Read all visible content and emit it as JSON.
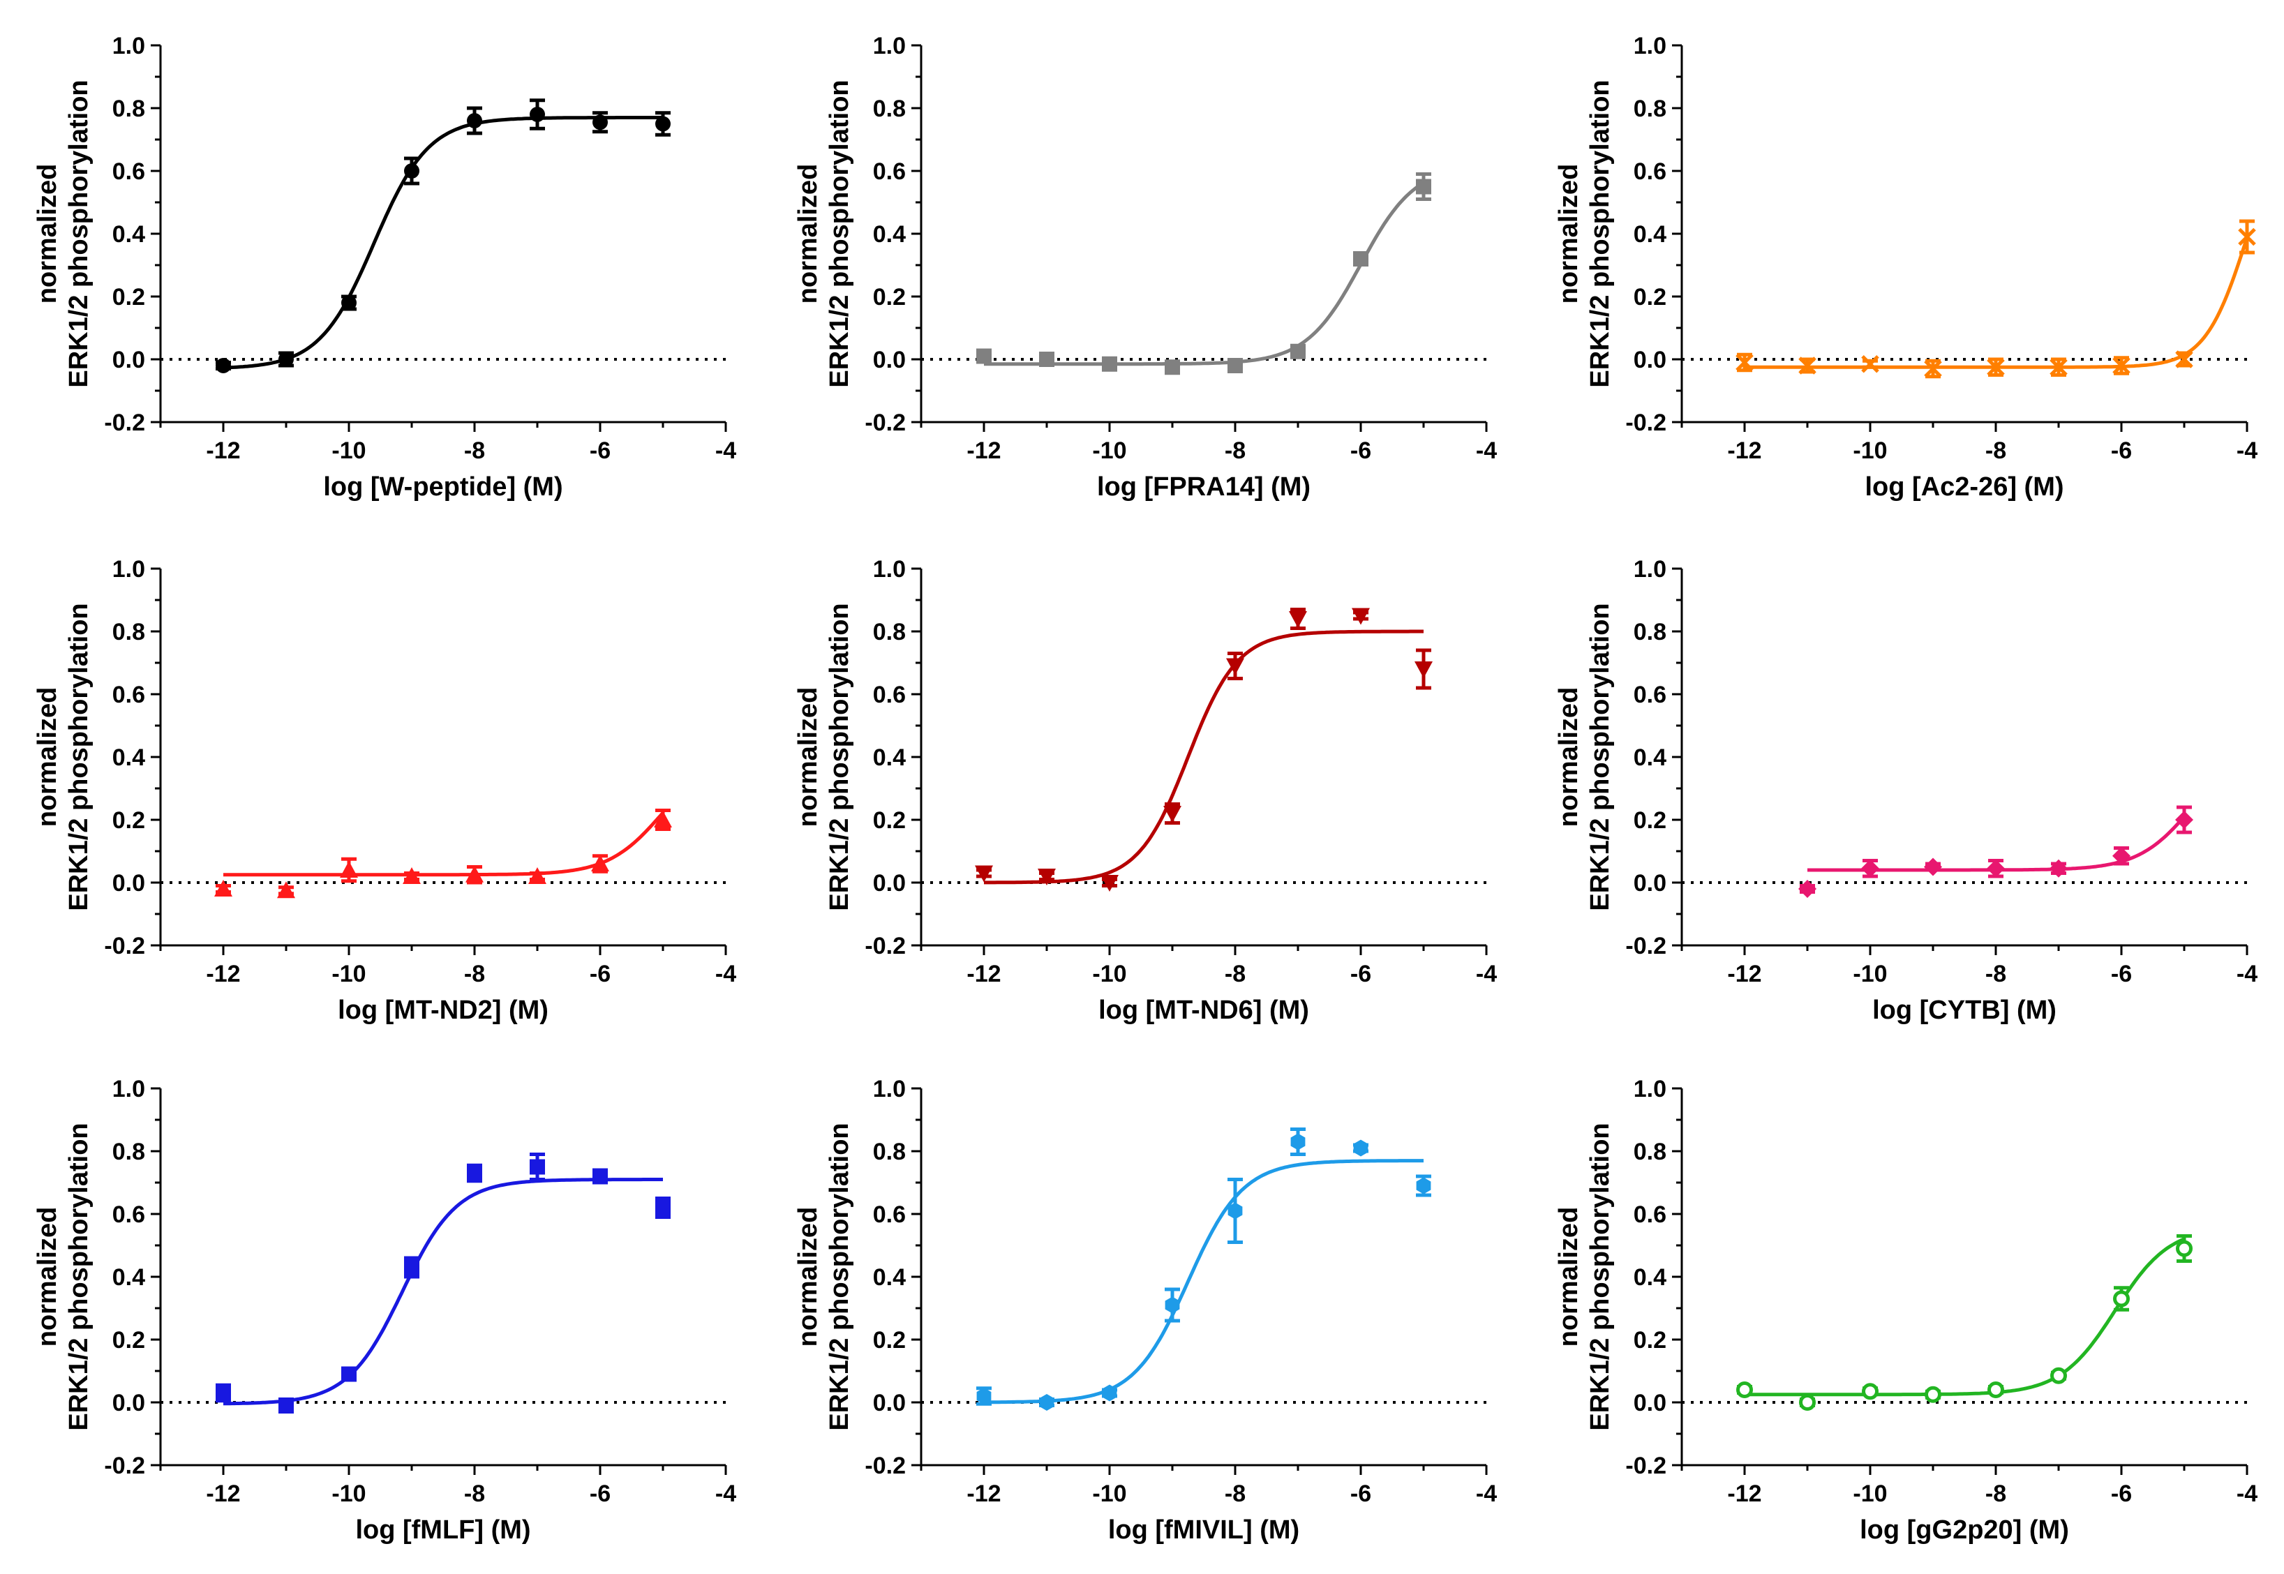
{
  "figure_layout": "3x3 grid",
  "chart_data": [
    {
      "type": "scatter",
      "title": "",
      "xlabel": "log [W-peptide] (M)",
      "ylabel_lines": [
        "normalized",
        "ERK1/2 phosphorylation"
      ],
      "xlim": [
        -13,
        -4
      ],
      "ylim": [
        -0.2,
        1.0
      ],
      "xticks": [
        "-12",
        "-10",
        "-8",
        "-6",
        "-4"
      ],
      "yticks": [
        "-0.2",
        "0.0",
        "0.2",
        "0.4",
        "0.6",
        "0.8",
        "1.0"
      ],
      "baseline_y": 0,
      "color": "#000000",
      "marker": "circle",
      "x": [
        -12,
        -11,
        -10,
        -9,
        -8,
        -7,
        -6,
        -5
      ],
      "y": [
        -0.02,
        0.0,
        0.18,
        0.6,
        0.76,
        0.78,
        0.755,
        0.75
      ],
      "err": [
        0.01,
        0.02,
        0.02,
        0.04,
        0.04,
        0.045,
        0.03,
        0.035
      ],
      "fit": {
        "bottom": -0.03,
        "top": 0.77,
        "logEC50": -9.6,
        "hill": 1.0,
        "xmin": -12,
        "xmax": -5
      }
    },
    {
      "type": "scatter",
      "title": "",
      "xlabel": "log [FPRA14] (M)",
      "ylabel_lines": [
        "normalized",
        "ERK1/2 phosphorylation"
      ],
      "xlim": [
        -13,
        -4
      ],
      "ylim": [
        -0.2,
        1.0
      ],
      "xticks": [
        "-12",
        "-10",
        "-8",
        "-6",
        "-4"
      ],
      "yticks": [
        "-0.2",
        "0.0",
        "0.2",
        "0.4",
        "0.6",
        "0.8",
        "1.0"
      ],
      "baseline_y": 0,
      "color": "#808080",
      "marker": "square",
      "x": [
        -12,
        -11,
        -10,
        -9,
        -8,
        -7,
        -6,
        -5
      ],
      "y": [
        0.01,
        0.0,
        -0.015,
        -0.025,
        -0.02,
        0.025,
        0.32,
        0.55
      ],
      "err": [
        0.01,
        0.01,
        0.01,
        0.01,
        0.01,
        0.01,
        0.015,
        0.04
      ],
      "fit": {
        "bottom": -0.015,
        "top": 0.62,
        "logEC50": -6.0,
        "hill": 1.0,
        "xmin": -12,
        "xmax": -5
      }
    },
    {
      "type": "scatter",
      "title": "",
      "xlabel": "log [Ac2-26] (M)",
      "ylabel_lines": [
        "normalized",
        "ERK1/2 phosphorylation"
      ],
      "xlim": [
        -13,
        -4
      ],
      "ylim": [
        -0.2,
        1.0
      ],
      "xticks": [
        "-12",
        "-10",
        "-8",
        "-6",
        "-4"
      ],
      "yticks": [
        "-0.2",
        "0.0",
        "0.2",
        "0.4",
        "0.6",
        "0.8",
        "1.0"
      ],
      "baseline_y": 0,
      "color": "#ff7f00",
      "marker": "cross",
      "x": [
        -12,
        -11,
        -10,
        -9,
        -8,
        -7,
        -6,
        -5,
        -4
      ],
      "y": [
        -0.01,
        -0.02,
        -0.015,
        -0.03,
        -0.025,
        -0.025,
        -0.02,
        0.0,
        0.39
      ],
      "err": [
        0.025,
        0.02,
        0.01,
        0.025,
        0.025,
        0.025,
        0.025,
        0.02,
        0.05
      ],
      "fit": {
        "bottom": -0.025,
        "top": 0.8,
        "logEC50": -4.0,
        "hill": 1.3,
        "xmin": -12,
        "xmax": -4
      }
    },
    {
      "type": "scatter",
      "title": "",
      "xlabel": "log [MT-ND2] (M)",
      "ylabel_lines": [
        "normalized",
        "ERK1/2 phosphorylation"
      ],
      "xlim": [
        -13,
        -4
      ],
      "ylim": [
        -0.2,
        1.0
      ],
      "xticks": [
        "-12",
        "-10",
        "-8",
        "-6",
        "-4"
      ],
      "yticks": [
        "-0.2",
        "0.0",
        "0.2",
        "0.4",
        "0.6",
        "0.8",
        "1.0"
      ],
      "baseline_y": 0,
      "color": "#ff1a1a",
      "marker": "triangle-up",
      "x": [
        -12,
        -11,
        -10,
        -9,
        -8,
        -7,
        -6,
        -5
      ],
      "y": [
        -0.02,
        -0.025,
        0.04,
        0.02,
        0.025,
        0.02,
        0.06,
        0.2
      ],
      "err": [
        0.01,
        0.01,
        0.035,
        0.01,
        0.025,
        0.01,
        0.025,
        0.03
      ],
      "fit": {
        "bottom": 0.025,
        "top": 0.42,
        "logEC50": -5.0,
        "hill": 1.0,
        "xmin": -12,
        "xmax": -5
      }
    },
    {
      "type": "scatter",
      "title": "",
      "xlabel": "log [MT-ND6] (M)",
      "ylabel_lines": [
        "normalized",
        "ERK1/2 phosphorylation"
      ],
      "xlim": [
        -13,
        -4
      ],
      "ylim": [
        -0.2,
        1.0
      ],
      "xticks": [
        "-12",
        "-10",
        "-8",
        "-6",
        "-4"
      ],
      "yticks": [
        "-0.2",
        "0.0",
        "0.2",
        "0.4",
        "0.6",
        "0.8",
        "1.0"
      ],
      "baseline_y": 0,
      "color": "#b50000",
      "marker": "triangle-down",
      "x": [
        -12,
        -11,
        -10,
        -9,
        -8,
        -7,
        -6,
        -5
      ],
      "y": [
        0.03,
        0.02,
        0.0,
        0.22,
        0.69,
        0.84,
        0.85,
        0.68
      ],
      "err": [
        0.01,
        0.01,
        0.01,
        0.03,
        0.04,
        0.03,
        0.01,
        0.06
      ],
      "fit": {
        "bottom": 0.0,
        "top": 0.8,
        "logEC50": -8.75,
        "hill": 1.1,
        "xmin": -12,
        "xmax": -5
      }
    },
    {
      "type": "scatter",
      "title": "",
      "xlabel": "log [CYTB] (M)",
      "ylabel_lines": [
        "normalized",
        "ERK1/2 phosphorylation"
      ],
      "xlim": [
        -13,
        -4
      ],
      "ylim": [
        -0.2,
        1.0
      ],
      "xticks": [
        "-12",
        "-10",
        "-8",
        "-6",
        "-4"
      ],
      "yticks": [
        "-0.2",
        "0.0",
        "0.2",
        "0.4",
        "0.6",
        "0.8",
        "1.0"
      ],
      "baseline_y": 0,
      "color": "#e8176f",
      "marker": "diamond",
      "x": [
        -11,
        -10,
        -9,
        -8,
        -7,
        -6,
        -5
      ],
      "y": [
        -0.02,
        0.045,
        0.05,
        0.045,
        0.045,
        0.085,
        0.2
      ],
      "err": [
        0.01,
        0.025,
        0.01,
        0.025,
        0.015,
        0.025,
        0.04
      ],
      "fit": {
        "bottom": 0.04,
        "top": 0.45,
        "logEC50": -4.85,
        "hill": 1.0,
        "xmin": -11,
        "xmax": -5
      }
    },
    {
      "type": "scatter",
      "title": "",
      "xlabel": "log [fMLF] (M)",
      "ylabel_lines": [
        "normalized",
        "ERK1/2 phosphorylation"
      ],
      "xlim": [
        -13,
        -4
      ],
      "ylim": [
        -0.2,
        1.0
      ],
      "xticks": [
        "-12",
        "-10",
        "-8",
        "-6",
        "-4"
      ],
      "yticks": [
        "-0.2",
        "0.0",
        "0.2",
        "0.4",
        "0.6",
        "0.8",
        "1.0"
      ],
      "baseline_y": 0,
      "color": "#1818e0",
      "marker": "square",
      "x": [
        -12,
        -11,
        -10,
        -9,
        -8,
        -7,
        -6,
        -5
      ],
      "y": [
        0.03,
        -0.01,
        0.09,
        0.43,
        0.73,
        0.75,
        0.72,
        0.62
      ],
      "err": [
        0.025,
        0.02,
        0.01,
        0.03,
        0.025,
        0.04,
        0.02,
        0.03
      ],
      "fit": {
        "bottom": -0.005,
        "top": 0.71,
        "logEC50": -9.15,
        "hill": 1.0,
        "xmin": -12,
        "xmax": -5
      }
    },
    {
      "type": "scatter",
      "title": "",
      "xlabel": "log [fMIVIL] (M)",
      "ylabel_lines": [
        "normalized",
        "ERK1/2 phosphorylation"
      ],
      "xlim": [
        -13,
        -4
      ],
      "ylim": [
        -0.2,
        1.0
      ],
      "xticks": [
        "-12",
        "-10",
        "-8",
        "-6",
        "-4"
      ],
      "yticks": [
        "-0.2",
        "0.0",
        "0.2",
        "0.4",
        "0.6",
        "0.8",
        "1.0"
      ],
      "baseline_y": 0,
      "color": "#1e9be8",
      "marker": "hexagon",
      "x": [
        -12,
        -11,
        -10,
        -9,
        -8,
        -7,
        -6,
        -5
      ],
      "y": [
        0.02,
        0.0,
        0.03,
        0.31,
        0.61,
        0.83,
        0.81,
        0.69
      ],
      "err": [
        0.025,
        0.01,
        0.01,
        0.05,
        0.1,
        0.04,
        0.01,
        0.03
      ],
      "fit": {
        "bottom": 0.0,
        "top": 0.77,
        "logEC50": -8.75,
        "hill": 1.0,
        "xmin": -12,
        "xmax": -5
      }
    },
    {
      "type": "scatter",
      "title": "",
      "xlabel": "log [gG2p20] (M)",
      "ylabel_lines": [
        "normalized",
        "ERK1/2 phosphorylation"
      ],
      "xlim": [
        -13,
        -4
      ],
      "ylim": [
        -0.2,
        1.0
      ],
      "xticks": [
        "-12",
        "-10",
        "-8",
        "-6",
        "-4"
      ],
      "yticks": [
        "-0.2",
        "0.0",
        "0.2",
        "0.4",
        "0.6",
        "0.8",
        "1.0"
      ],
      "baseline_y": 0,
      "color": "#22b522",
      "marker": "circle-open",
      "x": [
        -12,
        -11,
        -10,
        -9,
        -8,
        -7,
        -6,
        -5
      ],
      "y": [
        0.04,
        0.0,
        0.035,
        0.025,
        0.04,
        0.085,
        0.33,
        0.49
      ],
      "err": [
        0.01,
        0.01,
        0.01,
        0.01,
        0.01,
        0.01,
        0.035,
        0.04
      ],
      "fit": {
        "bottom": 0.025,
        "top": 0.56,
        "logEC50": -6.1,
        "hill": 1.0,
        "xmin": -12,
        "xmax": -5
      }
    }
  ]
}
